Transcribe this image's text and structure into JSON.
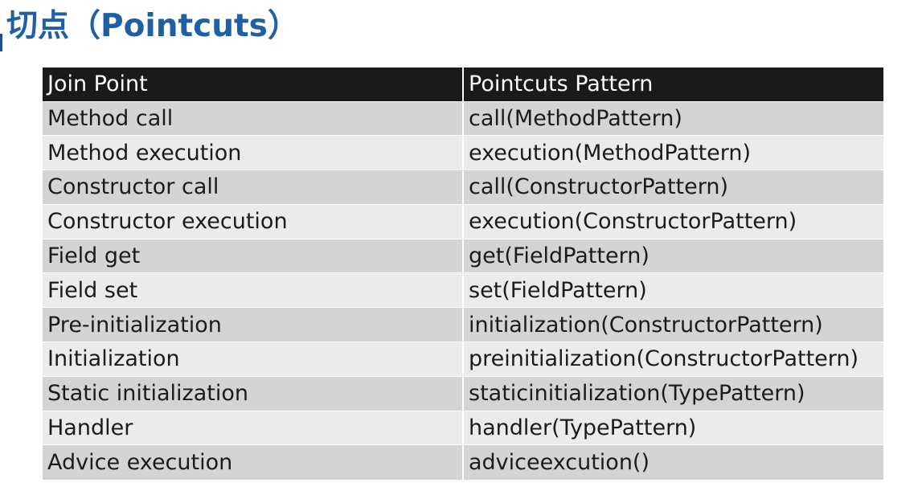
{
  "title": "切点（Pointcuts）",
  "table": {
    "headers": [
      "Join Point",
      "Pointcuts Pattern"
    ],
    "rows": [
      {
        "join_point": "Method call",
        "pattern": "call(MethodPattern)"
      },
      {
        "join_point": "Method execution",
        "pattern": "execution(MethodPattern)"
      },
      {
        "join_point": "Constructor call",
        "pattern": "call(ConstructorPattern)"
      },
      {
        "join_point": "Constructor execution",
        "pattern": "execution(ConstructorPattern)"
      },
      {
        "join_point": "Field get",
        "pattern": "get(FieldPattern)"
      },
      {
        "join_point": "Field set",
        "pattern": "set(FieldPattern)"
      },
      {
        "join_point": "Pre-initialization",
        "pattern": "initialization(ConstructorPattern)"
      },
      {
        "join_point": "Initialization",
        "pattern": "preinitialization(ConstructorPattern)"
      },
      {
        "join_point": "Static initialization",
        "pattern": "staticinitialization(TypePattern)"
      },
      {
        "join_point": "Handler",
        "pattern": "handler(TypePattern)"
      },
      {
        "join_point": "Advice execution",
        "pattern": "adviceexcution()"
      }
    ]
  },
  "colors": {
    "title": "#1f5fa4",
    "header_bg": "#1a1a1a",
    "row_dark": "#d4d4d4",
    "row_light": "#ebebeb"
  }
}
